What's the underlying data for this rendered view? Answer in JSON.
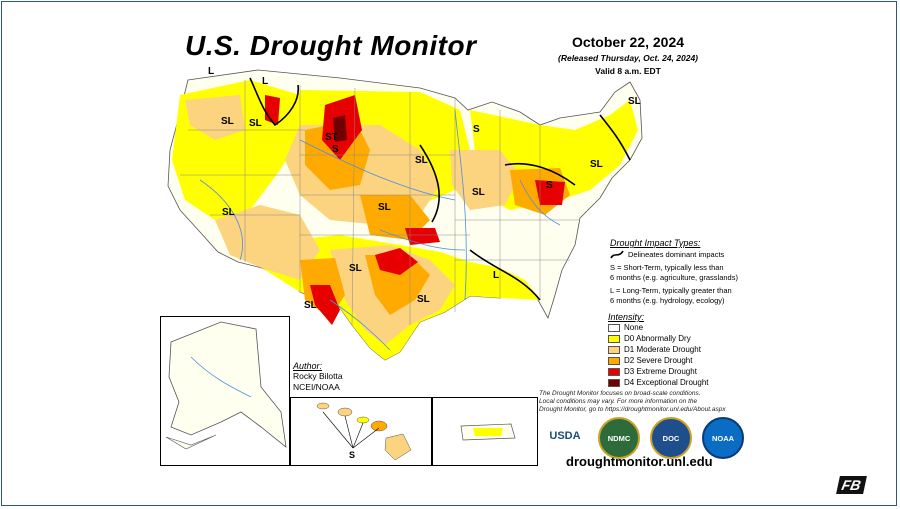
{
  "title": "U.S. Drought Monitor",
  "date": "October 22, 2024",
  "released": "(Released Thursday, Oct. 24, 2024)",
  "valid": "Valid 8 a.m. EDT",
  "region_labels": [
    "SL",
    "L",
    "L",
    "SL",
    "ST",
    "S",
    "SL",
    "SL",
    "SL",
    "S",
    "SL",
    "SL",
    "SL",
    "SL",
    "SL",
    "SL",
    "L",
    "S"
  ],
  "author": {
    "heading": "Author:",
    "name": "Rocky Bilotta",
    "org": "NCEI/NOAA"
  },
  "impact_types": {
    "heading": "Drought Impact Types:",
    "delineates": "Delineates dominant impacts",
    "s_line1": "S = Short-Term, typically less than",
    "s_line2": "6 months (e.g. agriculture, grasslands)",
    "l_line1": "L = Long-Term, typically greater than",
    "l_line2": "6 months (e.g. hydrology, ecology)"
  },
  "intensity": {
    "heading": "Intensity:",
    "items": [
      {
        "label": "None",
        "color": "#ffffff"
      },
      {
        "label": "D0 Abnormally Dry",
        "color": "#ffff00"
      },
      {
        "label": "D1 Moderate Drought",
        "color": "#fcd37f"
      },
      {
        "label": "D2 Severe Drought",
        "color": "#ffaa00"
      },
      {
        "label": "D3 Extreme Drought",
        "color": "#e60000"
      },
      {
        "label": "D4 Exceptional Drought",
        "color": "#730000"
      }
    ]
  },
  "note": {
    "line1": "The Drought Monitor focuses on broad-scale conditions.",
    "line2": "Local conditions may vary. For more information on the",
    "line3": "Drought Monitor, go to https://droughtmonitor.unl.edu/About.aspx"
  },
  "logos": [
    "USDA",
    "NDMC",
    "DOC",
    "NOAA"
  ],
  "url": "droughtmonitor.unl.edu",
  "corner_logo": "FB"
}
